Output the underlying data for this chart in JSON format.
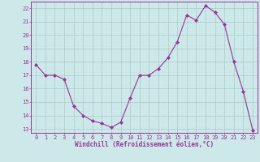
{
  "x": [
    0,
    1,
    2,
    3,
    4,
    5,
    6,
    7,
    8,
    9,
    10,
    11,
    12,
    13,
    14,
    15,
    16,
    17,
    18,
    19,
    20,
    21,
    22,
    23
  ],
  "y": [
    17.8,
    17.0,
    17.0,
    16.7,
    14.7,
    14.0,
    13.6,
    13.4,
    13.1,
    13.5,
    15.3,
    17.0,
    17.0,
    17.5,
    18.3,
    19.5,
    21.5,
    21.1,
    22.2,
    21.7,
    20.8,
    18.0,
    15.8,
    12.9
  ],
  "line_color": "#993399",
  "marker": "D",
  "marker_size": 2.0,
  "background_color": "#cce8e8",
  "grid_color": "#aacccc",
  "xlabel": "Windchill (Refroidissement éolien,°C)",
  "xlabel_color": "#993399",
  "tick_color": "#993399",
  "label_color": "#993399",
  "ylim": [
    12.7,
    22.5
  ],
  "xlim": [
    -0.5,
    23.5
  ],
  "yticks": [
    13,
    14,
    15,
    16,
    17,
    18,
    19,
    20,
    21,
    22
  ],
  "xticks": [
    0,
    1,
    2,
    3,
    4,
    5,
    6,
    7,
    8,
    9,
    10,
    11,
    12,
    13,
    14,
    15,
    16,
    17,
    18,
    19,
    20,
    21,
    22,
    23
  ],
  "tick_fontsize": 5.0,
  "xlabel_fontsize": 5.5
}
